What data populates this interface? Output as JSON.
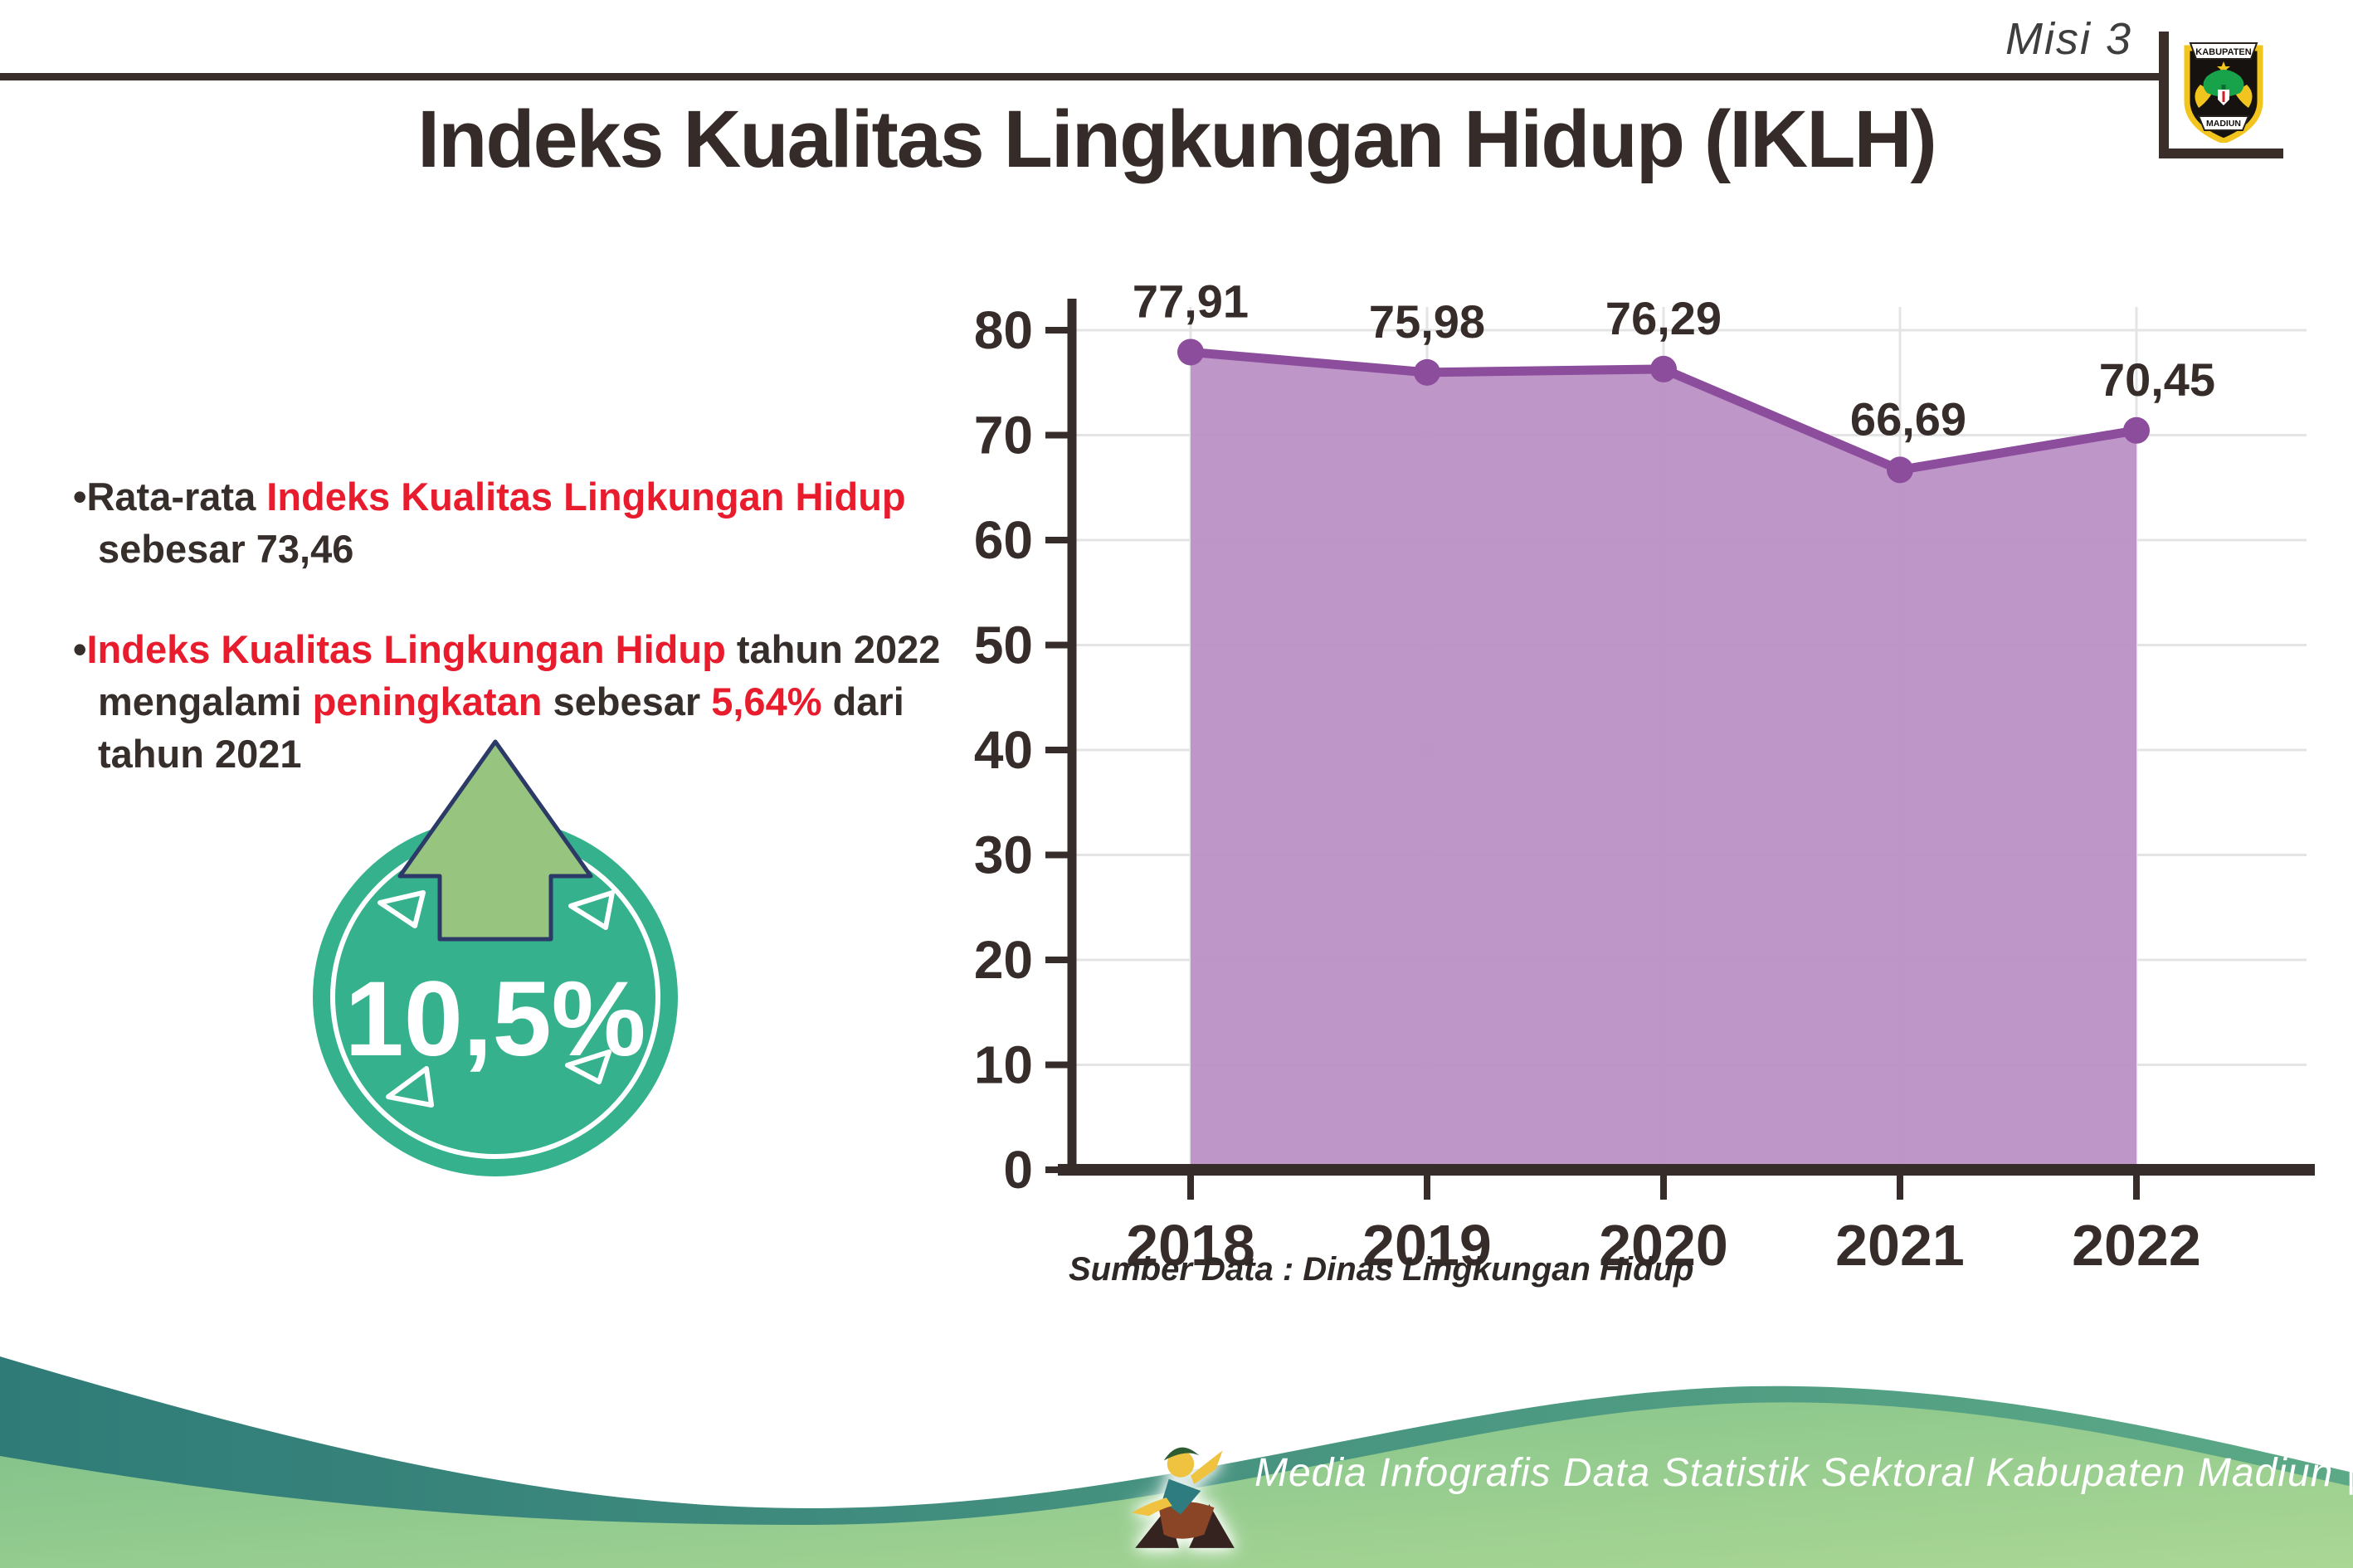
{
  "page": {
    "misi_label": "Misi 3"
  },
  "logo": {
    "top_banner": "KABUPATEN",
    "bottom_banner": "MADIUN"
  },
  "title": "Indeks Kualitas Lingkungan Hidup (IKLH)",
  "bullets": [
    {
      "segments": [
        {
          "text": "Rata-rata ",
          "color": "dark"
        },
        {
          "text": "Indeks Kualitas Lingkungan Hidup",
          "color": "red"
        },
        {
          "text": " sebesar 73,46",
          "color": "dark"
        }
      ]
    },
    {
      "segments": [
        {
          "text": "Indeks Kualitas Lingkungan Hidup",
          "color": "red"
        },
        {
          "text": " tahun 2022 mengalami ",
          "color": "dark"
        },
        {
          "text": "peningkatan",
          "color": "red"
        },
        {
          "text": " sebesar ",
          "color": "dark"
        },
        {
          "text": "5,64%",
          "color": "red"
        },
        {
          "text": " dari tahun 2021",
          "color": "dark"
        }
      ]
    }
  ],
  "badge": {
    "value": "10,5%"
  },
  "chart_data": {
    "type": "area",
    "title": "Indeks Kualitas Lingkungan Hidup (IKLH)",
    "categories": [
      "2018",
      "2019",
      "2020",
      "2021",
      "2022"
    ],
    "values": [
      77.91,
      75.98,
      76.29,
      66.69,
      70.45
    ],
    "value_labels": [
      "77,91",
      "75,98",
      "76,29",
      "66,69",
      "70,45"
    ],
    "ylim": [
      0,
      80
    ],
    "yticks": [
      0,
      10,
      20,
      30,
      40,
      50,
      60,
      70,
      80
    ],
    "grid": true,
    "legend": "none",
    "xlabel": "",
    "ylabel": ""
  },
  "source_label": "Sumber Data : Dinas Lingkungan Hidup",
  "footer": {
    "text": "Media Infografis Data Statistik Sektoral Kabupaten Madiun |"
  },
  "colors": {
    "ink": "#362c29",
    "red": "#e81c2d",
    "line_purple": "#8b4d9c",
    "fill_purple": "#ba90c5",
    "grid": "#e4e4e4",
    "badge_teal": "#35b28d",
    "arrow_green": "#97c47e",
    "arrow_outline": "#2c3a67",
    "footer_teal_left": "#2f7b78",
    "footer_teal_right": "#5ca987",
    "footer_green_left": "#7ec08a",
    "footer_green_right": "#abd794"
  }
}
